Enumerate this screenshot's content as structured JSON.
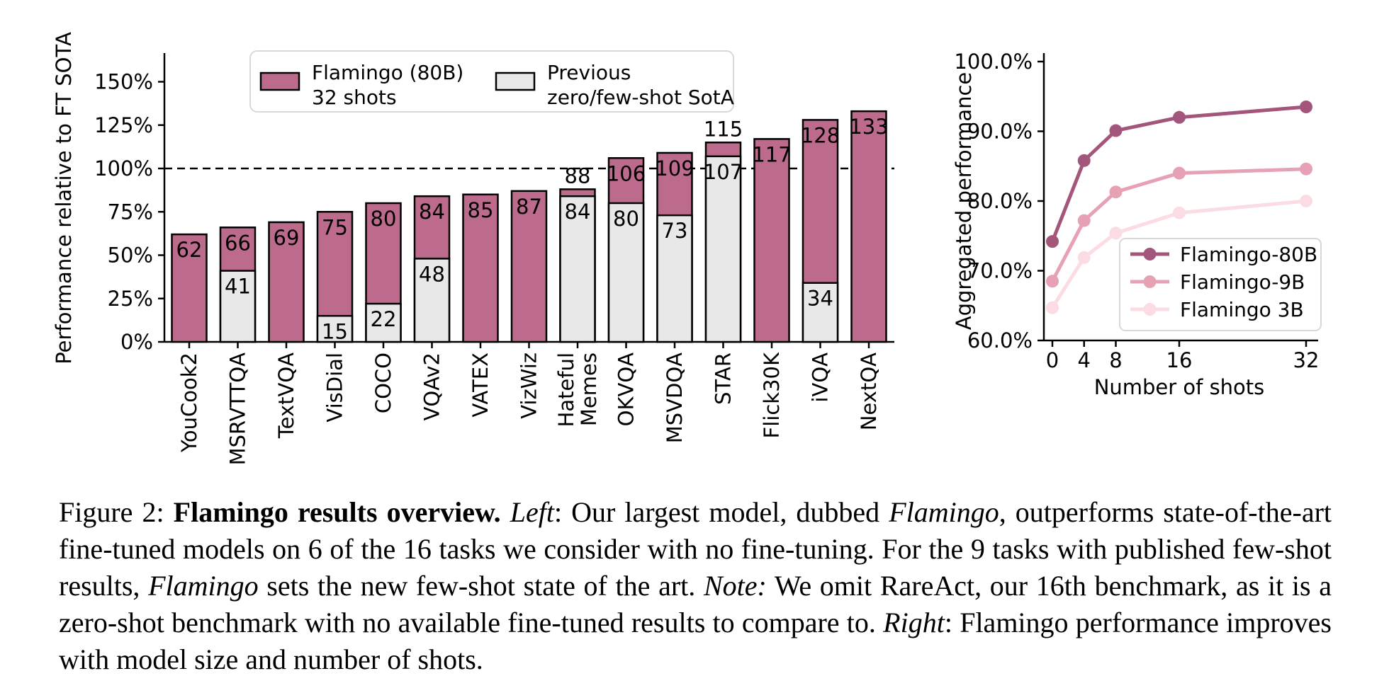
{
  "figure": {
    "caption": {
      "label": "Figure 2:",
      "segments": [
        {
          "style": "normal",
          "text": "Figure 2: "
        },
        {
          "style": "bold",
          "text": "Flamingo results overview."
        },
        {
          "style": "normal",
          "text": " "
        },
        {
          "style": "italic",
          "text": "Left"
        },
        {
          "style": "normal",
          "text": ": Our largest model, dubbed "
        },
        {
          "style": "italic",
          "text": "Flamingo"
        },
        {
          "style": "normal",
          "text": ", outperforms state-of-the-art fine-tuned models on 6 of the 16 tasks we consider with no fine-tuning. For the 9 tasks with published few-shot results, "
        },
        {
          "style": "italic",
          "text": "Flamingo"
        },
        {
          "style": "normal",
          "text": " sets the new few-shot state of the art. "
        },
        {
          "style": "italic",
          "text": "Note:"
        },
        {
          "style": "normal",
          "text": " We omit RareAct, our 16th benchmark, as it is a zero-shot benchmark with no available fine-tuned results to compare to. "
        },
        {
          "style": "italic",
          "text": "Right"
        },
        {
          "style": "normal",
          "text": ": Flamingo performance improves with model size and number of shots."
        }
      ]
    }
  },
  "chart_data": [
    {
      "type": "bar",
      "title": "",
      "xlabel": "",
      "ylabel": "Performance relative to FT SOTA",
      "categories": [
        "YouCook2",
        "MSRVTTQA",
        "TextVQA",
        "VisDial",
        "COCO",
        "VQAv2",
        "VATEX",
        "VizWiz",
        "Hateful\nMemes",
        "OKVQA",
        "MSVDQA",
        "STAR",
        "Flick30K",
        "iVQA",
        "NextQA"
      ],
      "series": [
        {
          "name": "Flamingo (80B) 32 shots",
          "color": "#bd6b8d",
          "values": [
            62,
            66,
            69,
            75,
            80,
            84,
            85,
            87,
            88,
            106,
            109,
            115,
            117,
            128,
            133
          ]
        },
        {
          "name": "Previous zero/few-shot SotA",
          "color": "#e8e8e8",
          "values": [
            null,
            41,
            null,
            15,
            22,
            48,
            null,
            null,
            84,
            80,
            73,
            107,
            null,
            34,
            null
          ]
        }
      ],
      "yticks": [
        "0%",
        "25%",
        "50%",
        "75%",
        "100%",
        "125%",
        "150%"
      ],
      "ytick_values": [
        0,
        25,
        50,
        75,
        100,
        125,
        150
      ],
      "ylim": [
        0,
        166
      ],
      "reference_line": 100,
      "grid": false,
      "legend_position": "upper left",
      "legend": [
        {
          "lines": [
            "Flamingo (80B)",
            "32 shots"
          ]
        },
        {
          "lines": [
            "Previous",
            "zero/few-shot SotA"
          ]
        }
      ]
    },
    {
      "type": "line",
      "title": "",
      "xlabel": "Number of shots",
      "ylabel": "Aggregated performance",
      "x": [
        0,
        4,
        8,
        16,
        32
      ],
      "xticks": [
        "0",
        "4",
        "8",
        "16",
        "32"
      ],
      "yticks": [
        "60.0%",
        "70.0%",
        "80.0%",
        "90.0%",
        "100.0%"
      ],
      "ytick_values": [
        60,
        70,
        80,
        90,
        100
      ],
      "ylim": [
        60,
        100
      ],
      "grid": false,
      "legend_position": "lower right",
      "series": [
        {
          "name": "Flamingo-80B",
          "color": "#a4557b",
          "values": [
            74.2,
            85.8,
            90.1,
            92.0,
            93.5
          ]
        },
        {
          "name": "Flamingo-9B",
          "color": "#e6a1b4",
          "values": [
            68.5,
            77.2,
            81.3,
            84.0,
            84.6
          ]
        },
        {
          "name": "Flamingo 3B",
          "color": "#fadce2",
          "values": [
            64.7,
            71.9,
            75.4,
            78.3,
            80.0
          ]
        }
      ]
    }
  ],
  "colors": {
    "flamingo_bar": "#bd6b8d",
    "previous_sota_bar": "#e8e8e8",
    "flamingo_80b_line": "#a4557b",
    "flamingo_9b_line": "#e6a1b4",
    "flamingo_3b_line": "#fadce2",
    "bar_edge": "#000000",
    "reference_dashed_line": "#000000"
  }
}
